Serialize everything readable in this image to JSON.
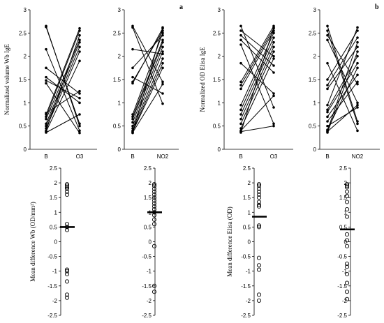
{
  "panel_labels": [
    "a",
    "b"
  ],
  "chart_data": [
    {
      "type": "line",
      "panel": "a",
      "ylabel": "Normalized  volume Wb IgE",
      "categories": [
        "B",
        "O3"
      ],
      "ylim": [
        0,
        3
      ],
      "yticks": [
        0,
        0.5,
        1,
        1.5,
        2,
        2.5,
        3
      ],
      "ytick_labels": [
        "0",
        "0.5",
        "1",
        "1.5",
        "2",
        "2.5",
        "3"
      ],
      "series": [
        {
          "values": [
            2.65,
            0.5
          ]
        },
        {
          "values": [
            2.63,
            0.55
          ]
        },
        {
          "values": [
            2.15,
            0.4
          ]
        },
        {
          "values": [
            1.75,
            1.2
          ]
        },
        {
          "values": [
            1.55,
            1.0
          ]
        },
        {
          "values": [
            1.48,
            1.1
          ]
        },
        {
          "values": [
            1.42,
            0.35
          ]
        },
        {
          "values": [
            0.78,
            1.25
          ]
        },
        {
          "values": [
            0.75,
            2.6
          ]
        },
        {
          "values": [
            0.7,
            2.55
          ]
        },
        {
          "values": [
            0.65,
            2.35
          ]
        },
        {
          "values": [
            0.55,
            2.3
          ]
        },
        {
          "values": [
            0.5,
            2.2
          ]
        },
        {
          "values": [
            0.45,
            2.1
          ]
        },
        {
          "values": [
            0.4,
            2.45
          ]
        },
        {
          "values": [
            0.38,
            1.9
          ]
        },
        {
          "values": [
            0.36,
            0.75
          ]
        }
      ]
    },
    {
      "type": "line",
      "panel": "a",
      "ylabel": "",
      "categories": [
        "B",
        "NO2"
      ],
      "ylim": [
        0,
        3
      ],
      "yticks": [
        0,
        0.5,
        1,
        1.5,
        2,
        2.5,
        3
      ],
      "ytick_labels": [
        "0",
        "0.5",
        "1",
        "1.5",
        "2",
        "2.5",
        "3"
      ],
      "series": [
        {
          "values": [
            2.65,
            1.45
          ]
        },
        {
          "values": [
            2.62,
            0.98
          ]
        },
        {
          "values": [
            2.15,
            2.05
          ]
        },
        {
          "values": [
            1.75,
            2.45
          ]
        },
        {
          "values": [
            1.55,
            1.2
          ]
        },
        {
          "values": [
            1.45,
            2.55
          ]
        },
        {
          "values": [
            1.42,
            2.6
          ]
        },
        {
          "values": [
            0.75,
            2.5
          ]
        },
        {
          "values": [
            0.7,
            2.35
          ]
        },
        {
          "values": [
            0.65,
            2.3
          ]
        },
        {
          "values": [
            0.58,
            2.2
          ]
        },
        {
          "values": [
            0.5,
            2.1
          ]
        },
        {
          "values": [
            0.45,
            1.95
          ]
        },
        {
          "values": [
            0.4,
            1.85
          ]
        },
        {
          "values": [
            0.38,
            1.75
          ]
        },
        {
          "values": [
            0.36,
            1.4
          ]
        },
        {
          "values": [
            0.35,
            2.62
          ]
        }
      ]
    },
    {
      "type": "line",
      "panel": "b",
      "ylabel": "Normalized  OD Elisa IgE",
      "categories": [
        "B",
        "O3"
      ],
      "ylim": [
        0,
        3
      ],
      "yticks": [
        0,
        0.5,
        1,
        1.5,
        2,
        2.5,
        3
      ],
      "ytick_labels": [
        "0",
        "0.5",
        "1",
        "1.5",
        "2",
        "2.5",
        "3"
      ],
      "series": [
        {
          "values": [
            2.65,
            0.9
          ]
        },
        {
          "values": [
            2.55,
            2.0
          ]
        },
        {
          "values": [
            2.45,
            1.8
          ]
        },
        {
          "values": [
            2.35,
            1.65
          ]
        },
        {
          "values": [
            2.25,
            0.55
          ]
        },
        {
          "values": [
            1.85,
            1.2
          ]
        },
        {
          "values": [
            1.45,
            2.65
          ]
        },
        {
          "values": [
            1.38,
            2.6
          ]
        },
        {
          "values": [
            1.3,
            2.55
          ]
        },
        {
          "values": [
            0.95,
            2.5
          ]
        },
        {
          "values": [
            0.85,
            2.4
          ]
        },
        {
          "values": [
            0.75,
            2.3
          ]
        },
        {
          "values": [
            0.65,
            2.2
          ]
        },
        {
          "values": [
            0.55,
            2.1
          ]
        },
        {
          "values": [
            0.45,
            1.95
          ]
        },
        {
          "values": [
            0.4,
            1.15
          ]
        },
        {
          "values": [
            0.38,
            0.5
          ]
        },
        {
          "values": [
            0.36,
            2.62
          ]
        }
      ]
    },
    {
      "type": "line",
      "panel": "b",
      "ylabel": "",
      "categories": [
        "B",
        "NO2"
      ],
      "ylim": [
        0,
        3
      ],
      "yticks": [
        0,
        0.5,
        1,
        1.5,
        2,
        2.5,
        3
      ],
      "ytick_labels": [
        "0",
        "0.5",
        "1",
        "1.5",
        "2",
        "2.5",
        "3"
      ],
      "series": [
        {
          "values": [
            2.65,
            0.6
          ]
        },
        {
          "values": [
            2.55,
            0.55
          ]
        },
        {
          "values": [
            2.45,
            1.4
          ]
        },
        {
          "values": [
            2.35,
            1.0
          ]
        },
        {
          "values": [
            1.85,
            0.4
          ]
        },
        {
          "values": [
            1.5,
            2.55
          ]
        },
        {
          "values": [
            1.38,
            2.4
          ]
        },
        {
          "values": [
            1.3,
            2.2
          ]
        },
        {
          "values": [
            0.95,
            2.62
          ]
        },
        {
          "values": [
            0.85,
            2.0
          ]
        },
        {
          "values": [
            0.8,
            1.85
          ]
        },
        {
          "values": [
            0.7,
            1.6
          ]
        },
        {
          "values": [
            0.6,
            1.45
          ]
        },
        {
          "values": [
            0.5,
            0.9
          ]
        },
        {
          "values": [
            0.42,
            1.75
          ]
        },
        {
          "values": [
            0.4,
            2.3
          ]
        },
        {
          "values": [
            0.38,
            0.95
          ]
        },
        {
          "values": [
            0.36,
            2.1
          ]
        }
      ]
    },
    {
      "type": "scatter",
      "panel": "a",
      "ylabel": "Mean difference Wb (OD/mm²)",
      "ylim": [
        -2.5,
        2.5
      ],
      "yticks": [
        -2.5,
        -2,
        -1.5,
        -1,
        -0.5,
        0,
        0.5,
        1,
        1.5,
        2,
        2.5
      ],
      "ytick_labels": [
        "-2.5",
        "-2",
        "-1.5",
        "-1",
        "-0.5",
        "0",
        "0.5",
        "1",
        "1.5",
        "2",
        "2.5"
      ],
      "mean": 0.5,
      "values": [
        1.95,
        1.9,
        1.85,
        1.8,
        1.7,
        1.6,
        0.6,
        0.5,
        0.4,
        -0.95,
        -1.0,
        -1.1,
        -1.35,
        -1.8,
        -1.9
      ]
    },
    {
      "type": "scatter",
      "panel": "a",
      "ylabel": "",
      "ylim": [
        -2.5,
        2.5
      ],
      "yticks": [
        -2.5,
        -2,
        -1.5,
        -1,
        -0.5,
        0,
        0.5,
        1,
        1.5,
        2,
        2.5
      ],
      "ytick_labels": [
        "-2.5",
        "-2",
        "-1.5",
        "-1",
        "-0.5",
        "0",
        "0.5",
        "1",
        "1.5",
        "2",
        "2.5"
      ],
      "mean": 1.0,
      "values": [
        1.95,
        1.9,
        1.8,
        1.7,
        1.6,
        1.5,
        1.4,
        1.3,
        1.2,
        1.1,
        1.0,
        0.9,
        0.75,
        0.6,
        -0.15,
        -1.5,
        -1.7
      ]
    },
    {
      "type": "scatter",
      "panel": "b",
      "ylabel": "Mean difference Elisa  (OD)",
      "ylim": [
        -2.5,
        2.5
      ],
      "yticks": [
        -2.5,
        -2,
        -1.5,
        -1,
        -0.5,
        0,
        0.5,
        1,
        1.5,
        2,
        2.5
      ],
      "ytick_labels": [
        "-2.5",
        "-2",
        "-1.5",
        "-1",
        "-0.5",
        "0",
        "0.5",
        "1",
        "1.5",
        "2",
        "2.5"
      ],
      "mean": 0.85,
      "values": [
        1.95,
        1.9,
        1.8,
        1.7,
        1.6,
        1.5,
        1.35,
        1.25,
        1.2,
        0.55,
        0.5,
        -0.55,
        -0.8,
        -0.95,
        -1.8,
        -2.0
      ]
    },
    {
      "type": "scatter",
      "panel": "b",
      "ylabel": "",
      "ylim": [
        -2.5,
        2.5
      ],
      "yticks": [
        -2.5,
        -2,
        -1.5,
        -1,
        -0.5,
        0,
        0.5,
        1,
        1.5,
        2,
        2.5
      ],
      "ytick_labels": [
        "-2.5",
        "-2",
        "-1.5",
        "-1",
        "-0.5",
        "0",
        "0.5",
        "1",
        "1.5",
        "2",
        "2.5"
      ],
      "mean": 0.42,
      "values": [
        1.95,
        1.9,
        1.85,
        1.7,
        1.55,
        1.35,
        1.1,
        0.85,
        0.25,
        0.05,
        -0.15,
        -0.75,
        -0.85,
        -1.1,
        -1.4,
        -1.7,
        -1.95
      ]
    }
  ]
}
